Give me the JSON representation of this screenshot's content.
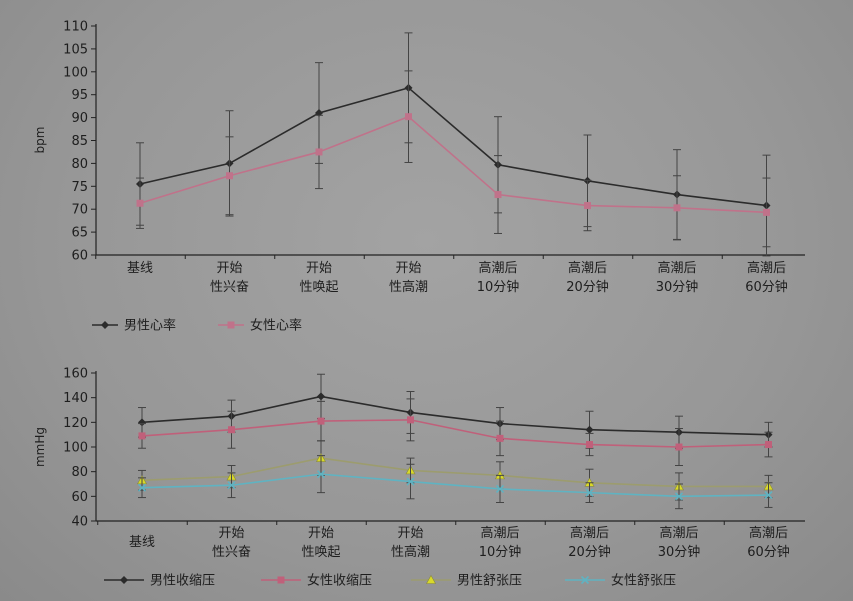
{
  "chart_data": [
    {
      "type": "line",
      "ylabel": "bpm",
      "ylim": [
        60,
        110
      ],
      "yticks": [
        "60",
        "65",
        "70",
        "75",
        "80",
        "85",
        "90",
        "95",
        "100",
        "105",
        "110"
      ],
      "categories": [
        [
          "基线"
        ],
        [
          "开始",
          "性兴奋"
        ],
        [
          "开始",
          "性唤起"
        ],
        [
          "开始",
          "性高潮"
        ],
        [
          "高潮后",
          "10分钟"
        ],
        [
          "高潮后",
          "20分钟"
        ],
        [
          "高潮后",
          "30分钟"
        ],
        [
          "高潮后",
          "60分钟"
        ]
      ],
      "series": [
        {
          "name": "男性心率",
          "color": "#2b2b2b",
          "marker": "diamond",
          "values": [
            75.5,
            80,
            91,
            96.5,
            79.7,
            76.2,
            73.2,
            70.8
          ],
          "errors": [
            9,
            11.5,
            11,
            12,
            10.5,
            10,
            9.8,
            11
          ]
        },
        {
          "name": "女性心率",
          "color": "#c0728a",
          "marker": "square",
          "values": [
            71.3,
            77.3,
            82.5,
            90.2,
            73.2,
            70.8,
            70.3,
            69.3
          ],
          "errors": [
            5.5,
            8.5,
            8,
            10,
            8.5,
            5.5,
            7,
            7.5
          ]
        }
      ],
      "legend_position": "bottom-left"
    },
    {
      "type": "line",
      "ylabel": "mmHg",
      "ylim": [
        40,
        160
      ],
      "yticks": [
        "40",
        "60",
        "80",
        "100",
        "120",
        "140",
        "160"
      ],
      "categories": [
        [
          "基线"
        ],
        [
          "开始",
          "性兴奋"
        ],
        [
          "开始",
          "性唤起"
        ],
        [
          "开始",
          "性高潮"
        ],
        [
          "高潮后",
          "10分钟"
        ],
        [
          "高潮后",
          "20分钟"
        ],
        [
          "高潮后",
          "30分钟"
        ],
        [
          "高潮后",
          "60分钟"
        ]
      ],
      "series": [
        {
          "name": "男性收缩压",
          "color": "#2b2b2b",
          "marker": "diamond",
          "values": [
            120,
            125,
            141,
            128,
            119,
            114,
            112,
            110
          ],
          "errors": [
            12,
            13,
            18,
            17,
            13,
            15,
            13,
            10
          ]
        },
        {
          "name": "女性收缩压",
          "color": "#c0607a",
          "marker": "square",
          "values": [
            109,
            114,
            121,
            122,
            107,
            102,
            100,
            102
          ],
          "errors": [
            10,
            15,
            16,
            17,
            14,
            9,
            15,
            10
          ]
        },
        {
          "name": "男性舒张压",
          "color": "#9c9c6e",
          "marker": "triangle",
          "values": [
            73,
            76,
            91,
            81,
            77,
            71,
            68,
            68
          ],
          "errors": [
            8,
            9,
            14,
            10,
            11,
            11,
            11,
            9
          ]
        },
        {
          "name": "女性舒张压",
          "color": "#5fb3c2",
          "marker": "x",
          "values": [
            67,
            69,
            78,
            72,
            66,
            63,
            60,
            61
          ],
          "errors": [
            8,
            10,
            15,
            14,
            11,
            8,
            10,
            10
          ]
        }
      ],
      "legend_position": "bottom-left"
    }
  ]
}
